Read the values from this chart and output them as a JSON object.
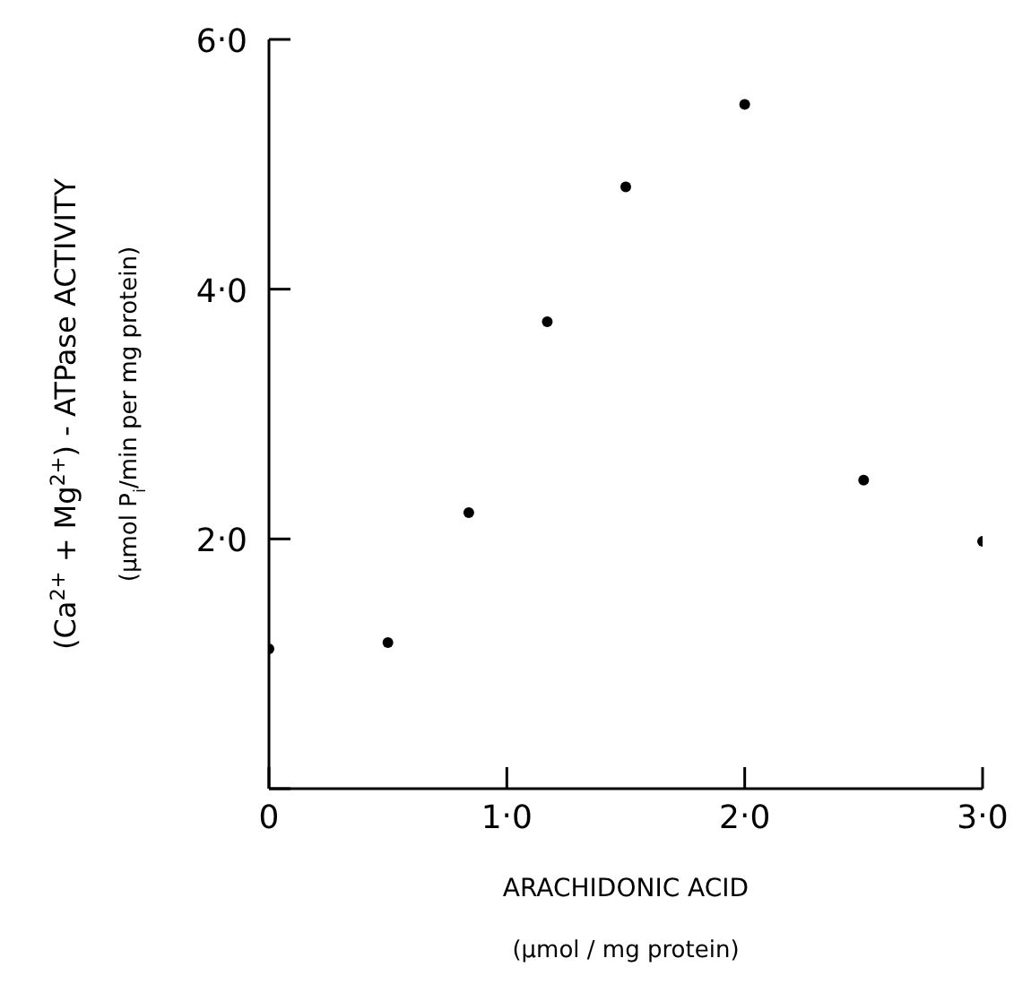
{
  "chart_data": {
    "type": "scatter",
    "xlabel": "ARACHIDONIC ACID\n(μmol / mg protein)",
    "ylabel": "(Ca$^{2+}$ + Mg$^{2+}$) - ATPase ACTIVITY\n(μmol P$_{i}$/min per mg protein)",
    "x": [
      0,
      0.5,
      0.84,
      1.17,
      1.5,
      2.0,
      2.5,
      3.0
    ],
    "series": [
      {
        "color": "#000000",
        "values": [
          1.12,
          1.17,
          2.21,
          3.74,
          4.82,
          5.48,
          2.47,
          1.98
        ]
      }
    ],
    "xlim": [
      0,
      3
    ],
    "xticks": [
      0,
      {
        "value": 1,
        "label": "1.0"
      },
      {
        "value": 2,
        "label": "2.0"
      },
      {
        "value": 3,
        "label": "3.0"
      }
    ],
    "ylim": [
      0,
      6
    ],
    "yticks": [
      {
        "value": 0,
        "label": null
      },
      {
        "value": 2,
        "label": "2.0"
      },
      {
        "value": 4,
        "label": "4.0"
      },
      {
        "value": 6,
        "label": "6.0"
      }
    ],
    "grid": false,
    "legend": false,
    "marker": "circle"
  }
}
